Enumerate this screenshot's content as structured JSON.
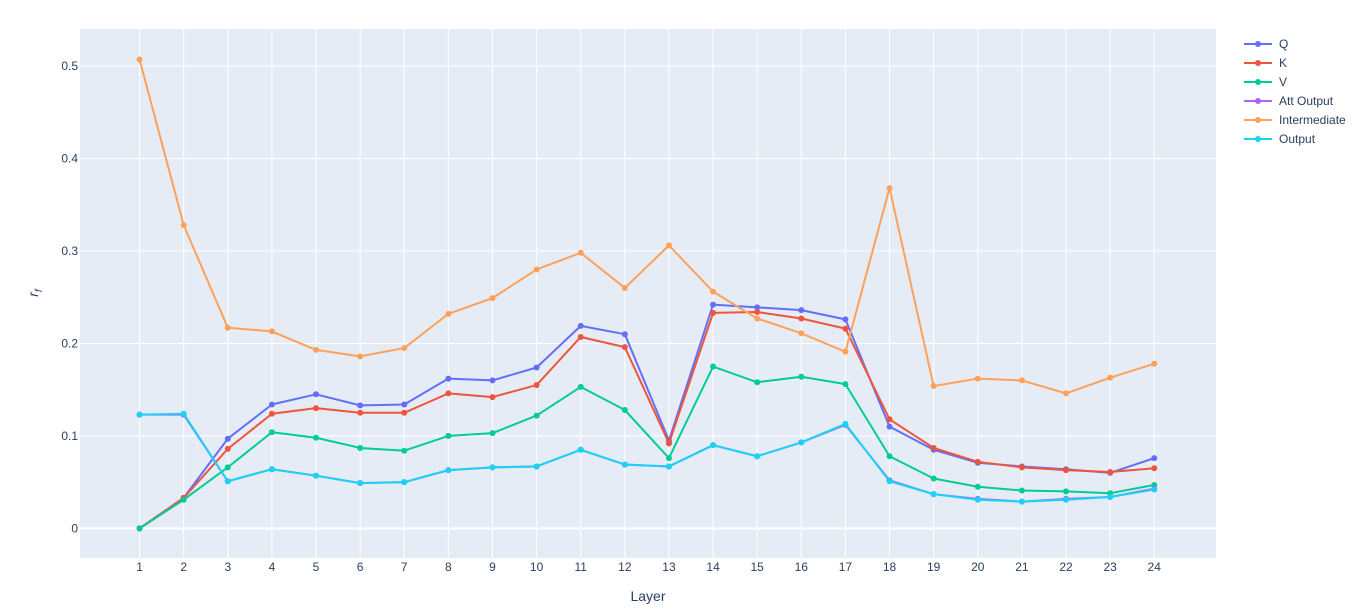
{
  "chart_data": {
    "type": "line",
    "xlabel": "Layer",
    "ylabel": "r_f",
    "ylabel_main": "r",
    "ylabel_sub": "f",
    "x": [
      1,
      2,
      3,
      4,
      5,
      6,
      7,
      8,
      9,
      10,
      11,
      12,
      13,
      14,
      15,
      16,
      17,
      18,
      19,
      20,
      21,
      22,
      23,
      24
    ],
    "xlim": [
      -0.35,
      25.4
    ],
    "ylim": [
      -0.032,
      0.54
    ],
    "yticks": [
      0,
      0.1,
      0.2,
      0.3,
      0.4,
      0.5
    ],
    "ytick_labels": [
      "0",
      "0.1",
      "0.2",
      "0.3",
      "0.4",
      "0.5"
    ],
    "grid": true,
    "legend_position": "right",
    "series": [
      {
        "name": "Q",
        "color": "#636efa",
        "values": [
          0.0,
          0.033,
          0.097,
          0.134,
          0.145,
          0.133,
          0.134,
          0.162,
          0.16,
          0.174,
          0.219,
          0.21,
          0.095,
          0.242,
          0.239,
          0.236,
          0.226,
          0.11,
          0.085,
          0.071,
          0.067,
          0.064,
          0.06,
          0.076
        ]
      },
      {
        "name": "K",
        "color": "#ef553b",
        "values": [
          0.0,
          0.033,
          0.086,
          0.124,
          0.13,
          0.125,
          0.125,
          0.146,
          0.142,
          0.155,
          0.207,
          0.196,
          0.092,
          0.233,
          0.234,
          0.227,
          0.216,
          0.118,
          0.087,
          0.072,
          0.066,
          0.063,
          0.061,
          0.065
        ]
      },
      {
        "name": "V",
        "color": "#00cc96",
        "values": [
          0.0,
          0.031,
          0.066,
          0.104,
          0.098,
          0.087,
          0.084,
          0.1,
          0.103,
          0.122,
          0.153,
          0.128,
          0.076,
          0.175,
          0.158,
          0.164,
          0.156,
          0.078,
          0.054,
          0.045,
          0.041,
          0.04,
          0.038,
          0.047
        ]
      },
      {
        "name": "Att Output",
        "color": "#ab63fa",
        "values": [
          0.123,
          0.123,
          0.051,
          0.064,
          0.057,
          0.049,
          0.05,
          0.063,
          0.066,
          0.067,
          0.085,
          0.069,
          0.067,
          0.09,
          0.078,
          0.093,
          0.112,
          0.052,
          0.037,
          0.032,
          0.029,
          0.032,
          0.034,
          0.043
        ]
      },
      {
        "name": "Intermediate",
        "color": "#ffa15a",
        "values": [
          0.507,
          0.328,
          0.217,
          0.213,
          0.193,
          0.186,
          0.195,
          0.232,
          0.249,
          0.28,
          0.298,
          0.26,
          0.306,
          0.256,
          0.227,
          0.211,
          0.191,
          0.368,
          0.154,
          0.162,
          0.16,
          0.146,
          0.163,
          0.178
        ]
      },
      {
        "name": "Output",
        "color": "#19d3f3",
        "values": [
          0.123,
          0.124,
          0.051,
          0.064,
          0.057,
          0.049,
          0.05,
          0.063,
          0.066,
          0.067,
          0.085,
          0.069,
          0.067,
          0.09,
          0.078,
          0.093,
          0.113,
          0.051,
          0.037,
          0.031,
          0.029,
          0.031,
          0.034,
          0.042
        ]
      }
    ]
  }
}
